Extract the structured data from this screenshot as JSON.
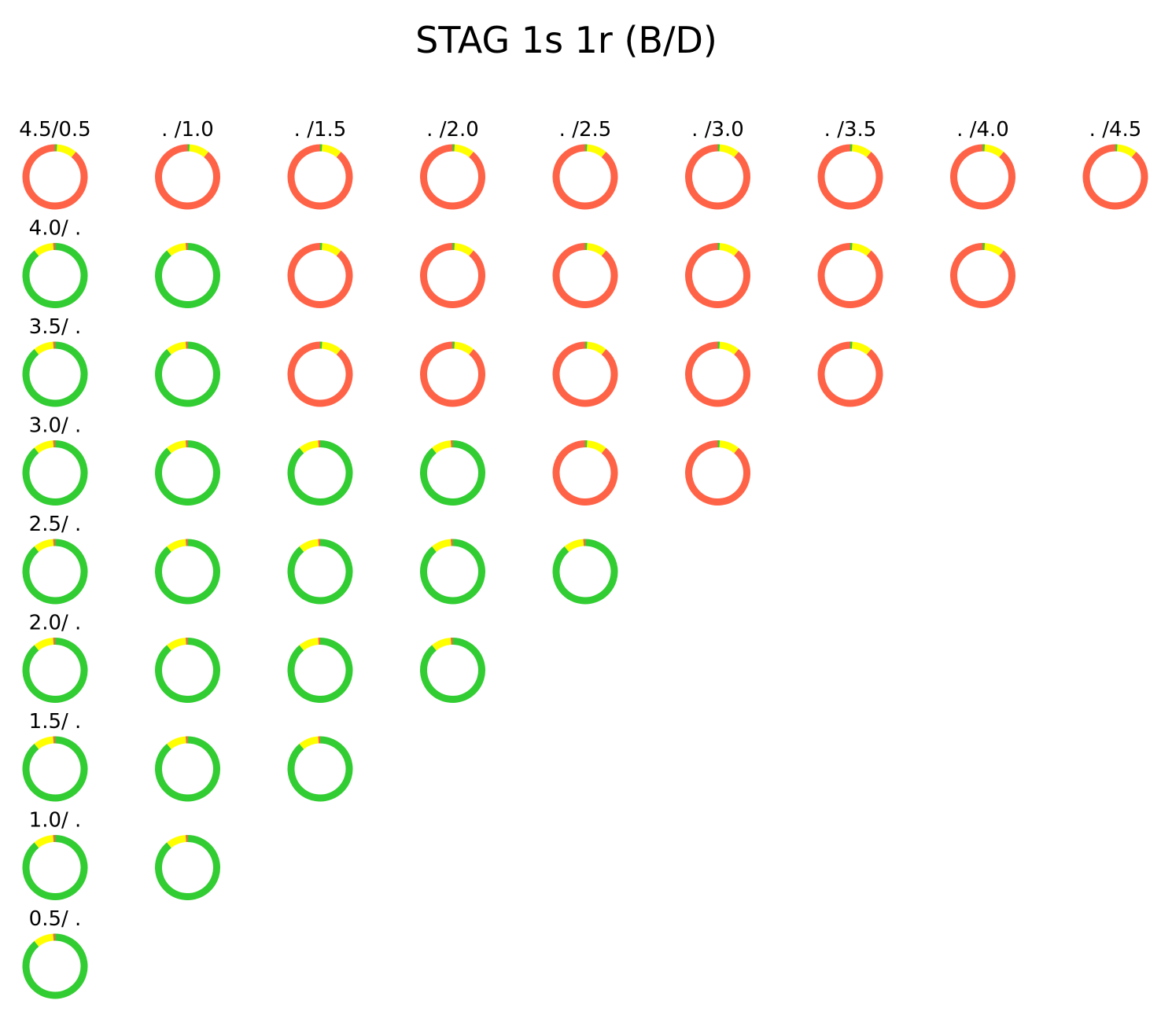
{
  "chart_data": {
    "type": "pie",
    "subtype": "donut-grid",
    "title": "STAG 1s 1r (B/D)",
    "colors": {
      "green": "#32cd32",
      "yellow": "#ffff00",
      "red": "#ff6347"
    },
    "cells": [
      {
        "row": 0,
        "col": 0,
        "label": "4.5/0.5",
        "fractions": {
          "red": 0.89,
          "yellow": 0.1,
          "green": 0.01
        }
      },
      {
        "row": 0,
        "col": 1,
        "label": ". /1.0",
        "fractions": {
          "red": 0.89,
          "yellow": 0.1,
          "green": 0.01
        }
      },
      {
        "row": 0,
        "col": 2,
        "label": ". /1.5",
        "fractions": {
          "red": 0.89,
          "yellow": 0.1,
          "green": 0.01
        }
      },
      {
        "row": 0,
        "col": 3,
        "label": ". /2.0",
        "fractions": {
          "red": 0.89,
          "yellow": 0.1,
          "green": 0.01
        }
      },
      {
        "row": 0,
        "col": 4,
        "label": ". /2.5",
        "fractions": {
          "red": 0.89,
          "yellow": 0.1,
          "green": 0.01
        }
      },
      {
        "row": 0,
        "col": 5,
        "label": ". /3.0",
        "fractions": {
          "red": 0.89,
          "yellow": 0.1,
          "green": 0.01
        }
      },
      {
        "row": 0,
        "col": 6,
        "label": ". /3.5",
        "fractions": {
          "red": 0.89,
          "yellow": 0.1,
          "green": 0.01
        }
      },
      {
        "row": 0,
        "col": 7,
        "label": ". /4.0",
        "fractions": {
          "red": 0.89,
          "yellow": 0.1,
          "green": 0.01
        }
      },
      {
        "row": 0,
        "col": 8,
        "label": ". /4.5",
        "fractions": {
          "red": 0.89,
          "yellow": 0.1,
          "green": 0.01
        }
      },
      {
        "row": 1,
        "col": 0,
        "label": "4.0/ .",
        "fractions": {
          "red": 0.01,
          "yellow": 0.1,
          "green": 0.89
        }
      },
      {
        "row": 1,
        "col": 1,
        "label": "",
        "fractions": {
          "red": 0.01,
          "yellow": 0.1,
          "green": 0.89
        }
      },
      {
        "row": 1,
        "col": 2,
        "label": "",
        "fractions": {
          "red": 0.89,
          "yellow": 0.1,
          "green": 0.01
        }
      },
      {
        "row": 1,
        "col": 3,
        "label": "",
        "fractions": {
          "red": 0.89,
          "yellow": 0.1,
          "green": 0.01
        }
      },
      {
        "row": 1,
        "col": 4,
        "label": "",
        "fractions": {
          "red": 0.89,
          "yellow": 0.1,
          "green": 0.01
        }
      },
      {
        "row": 1,
        "col": 5,
        "label": "",
        "fractions": {
          "red": 0.89,
          "yellow": 0.1,
          "green": 0.01
        }
      },
      {
        "row": 1,
        "col": 6,
        "label": "",
        "fractions": {
          "red": 0.89,
          "yellow": 0.1,
          "green": 0.01
        }
      },
      {
        "row": 1,
        "col": 7,
        "label": "",
        "fractions": {
          "red": 0.89,
          "yellow": 0.1,
          "green": 0.01
        }
      },
      {
        "row": 2,
        "col": 0,
        "label": "3.5/ .",
        "fractions": {
          "red": 0.01,
          "yellow": 0.1,
          "green": 0.89
        }
      },
      {
        "row": 2,
        "col": 1,
        "label": "",
        "fractions": {
          "red": 0.01,
          "yellow": 0.1,
          "green": 0.89
        }
      },
      {
        "row": 2,
        "col": 2,
        "label": "",
        "fractions": {
          "red": 0.89,
          "yellow": 0.1,
          "green": 0.01
        }
      },
      {
        "row": 2,
        "col": 3,
        "label": "",
        "fractions": {
          "red": 0.89,
          "yellow": 0.1,
          "green": 0.01
        }
      },
      {
        "row": 2,
        "col": 4,
        "label": "",
        "fractions": {
          "red": 0.89,
          "yellow": 0.1,
          "green": 0.01
        }
      },
      {
        "row": 2,
        "col": 5,
        "label": "",
        "fractions": {
          "red": 0.89,
          "yellow": 0.1,
          "green": 0.01
        }
      },
      {
        "row": 2,
        "col": 6,
        "label": "",
        "fractions": {
          "red": 0.89,
          "yellow": 0.1,
          "green": 0.01
        }
      },
      {
        "row": 3,
        "col": 0,
        "label": "3.0/ .",
        "fractions": {
          "red": 0.01,
          "yellow": 0.1,
          "green": 0.89
        }
      },
      {
        "row": 3,
        "col": 1,
        "label": "",
        "fractions": {
          "red": 0.01,
          "yellow": 0.1,
          "green": 0.89
        }
      },
      {
        "row": 3,
        "col": 2,
        "label": "",
        "fractions": {
          "red": 0.01,
          "yellow": 0.1,
          "green": 0.89
        }
      },
      {
        "row": 3,
        "col": 3,
        "label": "",
        "fractions": {
          "red": 0.01,
          "yellow": 0.1,
          "green": 0.89
        }
      },
      {
        "row": 3,
        "col": 4,
        "label": "",
        "fractions": {
          "red": 0.89,
          "yellow": 0.1,
          "green": 0.01
        }
      },
      {
        "row": 3,
        "col": 5,
        "label": "",
        "fractions": {
          "red": 0.89,
          "yellow": 0.1,
          "green": 0.01
        }
      },
      {
        "row": 4,
        "col": 0,
        "label": "2.5/ .",
        "fractions": {
          "red": 0.01,
          "yellow": 0.1,
          "green": 0.89
        }
      },
      {
        "row": 4,
        "col": 1,
        "label": "",
        "fractions": {
          "red": 0.01,
          "yellow": 0.1,
          "green": 0.89
        }
      },
      {
        "row": 4,
        "col": 2,
        "label": "",
        "fractions": {
          "red": 0.01,
          "yellow": 0.1,
          "green": 0.89
        }
      },
      {
        "row": 4,
        "col": 3,
        "label": "",
        "fractions": {
          "red": 0.01,
          "yellow": 0.1,
          "green": 0.89
        }
      },
      {
        "row": 4,
        "col": 4,
        "label": "",
        "fractions": {
          "red": 0.01,
          "yellow": 0.1,
          "green": 0.89
        }
      },
      {
        "row": 5,
        "col": 0,
        "label": "2.0/ .",
        "fractions": {
          "red": 0.01,
          "yellow": 0.1,
          "green": 0.89
        }
      },
      {
        "row": 5,
        "col": 1,
        "label": "",
        "fractions": {
          "red": 0.01,
          "yellow": 0.1,
          "green": 0.89
        }
      },
      {
        "row": 5,
        "col": 2,
        "label": "",
        "fractions": {
          "red": 0.01,
          "yellow": 0.1,
          "green": 0.89
        }
      },
      {
        "row": 5,
        "col": 3,
        "label": "",
        "fractions": {
          "red": 0.01,
          "yellow": 0.1,
          "green": 0.89
        }
      },
      {
        "row": 6,
        "col": 0,
        "label": "1.5/ .",
        "fractions": {
          "red": 0.01,
          "yellow": 0.1,
          "green": 0.89
        }
      },
      {
        "row": 6,
        "col": 1,
        "label": "",
        "fractions": {
          "red": 0.01,
          "yellow": 0.1,
          "green": 0.89
        }
      },
      {
        "row": 6,
        "col": 2,
        "label": "",
        "fractions": {
          "red": 0.01,
          "yellow": 0.1,
          "green": 0.89
        }
      },
      {
        "row": 7,
        "col": 0,
        "label": "1.0/ .",
        "fractions": {
          "red": 0.01,
          "yellow": 0.1,
          "green": 0.89
        }
      },
      {
        "row": 7,
        "col": 1,
        "label": "",
        "fractions": {
          "red": 0.01,
          "yellow": 0.1,
          "green": 0.89
        }
      },
      {
        "row": 8,
        "col": 0,
        "label": "0.5/ .",
        "fractions": {
          "red": 0.01,
          "yellow": 0.1,
          "green": 0.89
        }
      }
    ]
  }
}
